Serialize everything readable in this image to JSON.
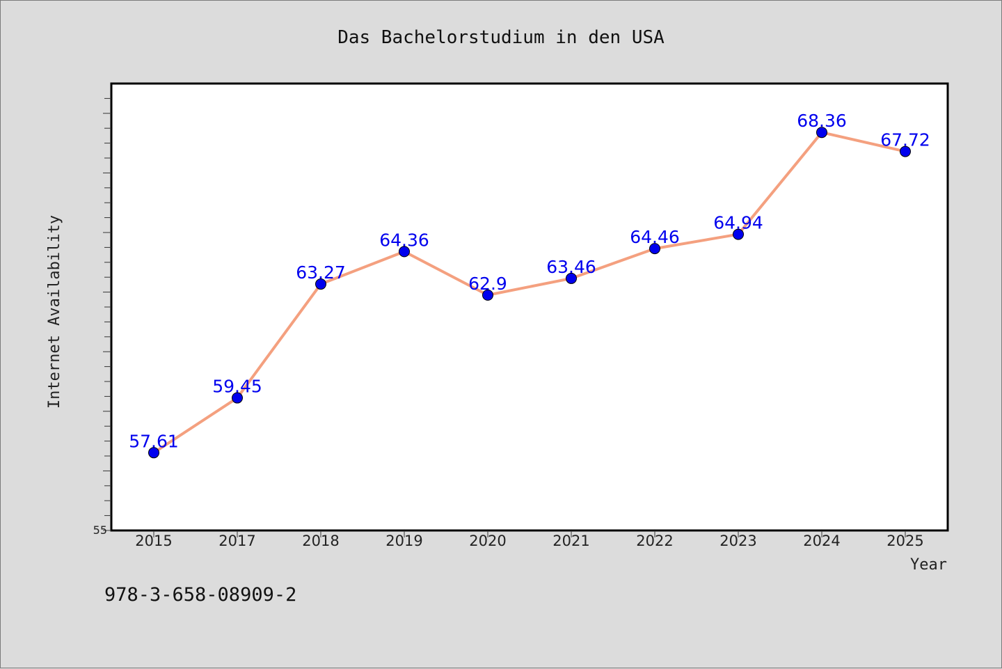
{
  "chart_data": {
    "type": "line",
    "title": "Das Bachelorstudium in den USA",
    "xlabel": "Year",
    "ylabel": "Internet Availability",
    "categories": [
      "2015",
      "2017",
      "2018",
      "2019",
      "2020",
      "2021",
      "2022",
      "2023",
      "2024",
      "2025"
    ],
    "series": [
      {
        "values": [
          57.61,
          59.45,
          63.27,
          64.36,
          62.9,
          63.46,
          64.46,
          64.94,
          68.36,
          67.72
        ],
        "line_color": "#f4a07f",
        "marker_color": "#0000ee"
      }
    ],
    "data_labels": [
      "57.61",
      "59.45",
      "63.27",
      "64.36",
      "62.9",
      "63.46",
      "64.46",
      "64.94",
      "68.36",
      "67.72"
    ],
    "ylim": [
      55,
      70
    ],
    "y_tick_labels": [
      "55"
    ],
    "grid": false,
    "footer": "978-3-658-08909-2"
  }
}
